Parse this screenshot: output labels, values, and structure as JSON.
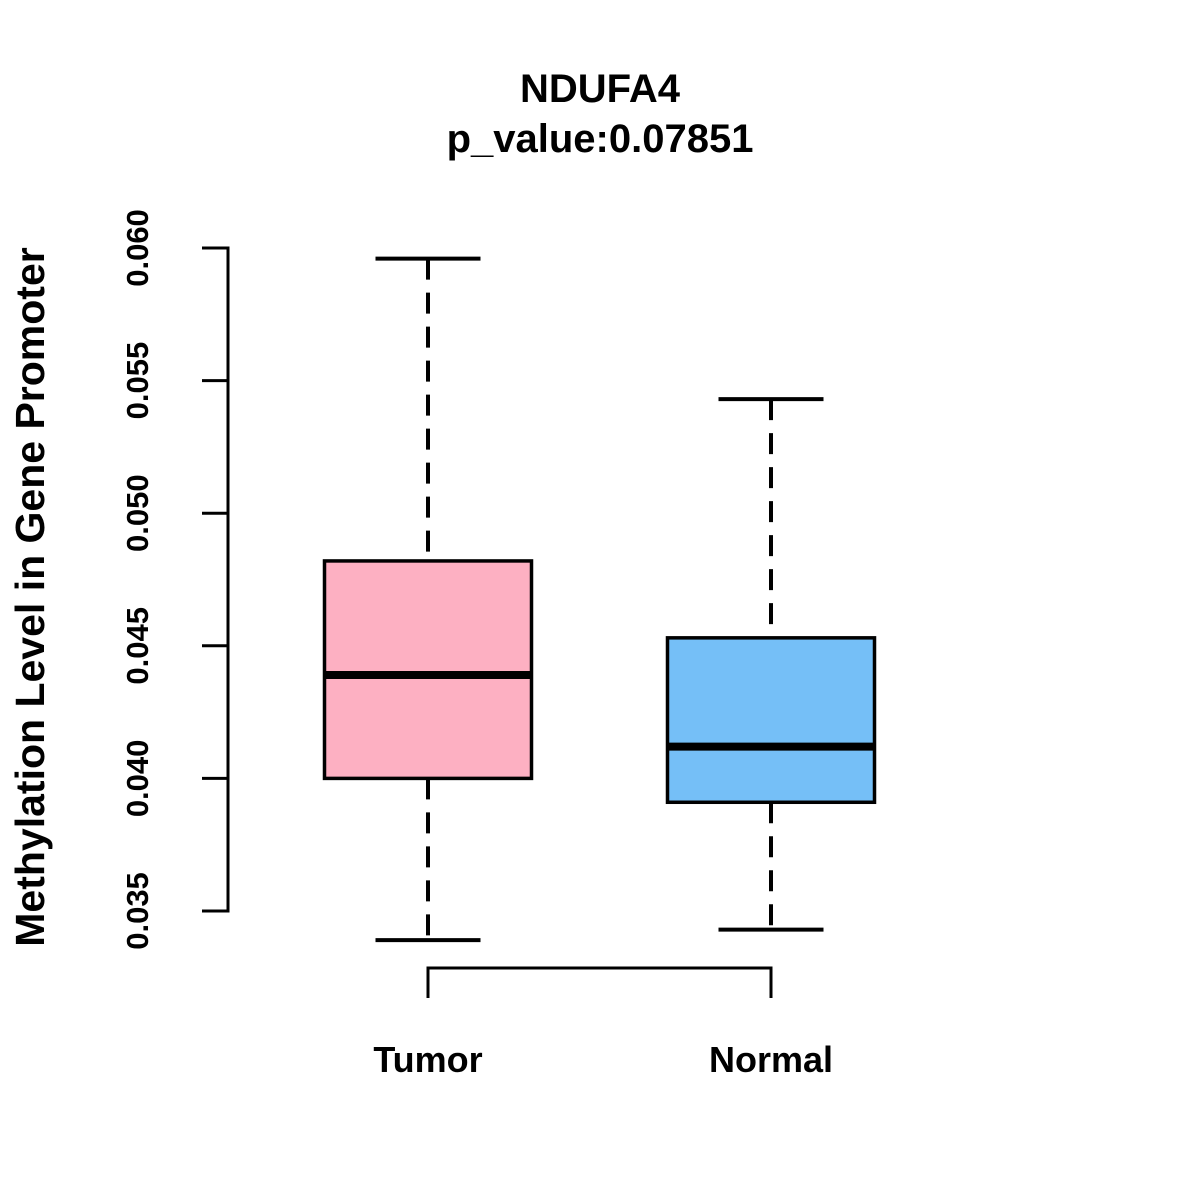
{
  "title": {
    "line1": "NDUFA4",
    "line2": "p_value:0.07851"
  },
  "chart_data": {
    "type": "boxplot",
    "title": "NDUFA4",
    "subtitle": "p_value:0.07851",
    "p_value": "0.07851",
    "gene": "NDUFA4",
    "ylabel": "Methylation Level in Gene Promoter",
    "xlabel": "",
    "ylim": [
      0.035,
      0.06
    ],
    "yticks": [
      "0.035",
      "0.040",
      "0.045",
      "0.050",
      "0.055",
      "0.060"
    ],
    "grid": false,
    "legend_position": "none",
    "categories": [
      "Tumor",
      "Normal"
    ],
    "groups": [
      {
        "label": "Tumor",
        "fill": "#FDB0C2",
        "whisker_low": 0.0339,
        "q1": 0.04,
        "median": 0.0439,
        "q3": 0.0482,
        "whisker_high": 0.0596
      },
      {
        "label": "Normal",
        "fill": "#75BFF7",
        "whisker_low": 0.0343,
        "q1": 0.0391,
        "median": 0.0412,
        "q3": 0.0453,
        "whisker_high": 0.0543
      }
    ],
    "comparison_bracket": {
      "from": "Tumor",
      "to": "Normal"
    }
  },
  "colors": {
    "background": "#FFFFFF",
    "line": "#000000",
    "tumor_fill": "#FDB0C2",
    "normal_fill": "#75BFF7"
  }
}
